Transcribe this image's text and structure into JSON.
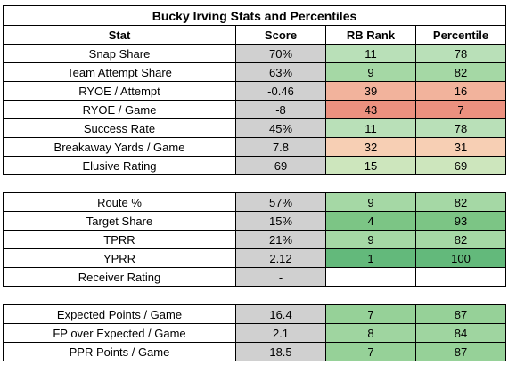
{
  "title": "Bucky Irving Stats and Percentiles",
  "headers": {
    "stat": "Stat",
    "score": "Score",
    "rank": "RB Rank",
    "percentile": "Percentile"
  },
  "sections": [
    {
      "rows": [
        {
          "stat": "Snap Share",
          "score": "70%",
          "rank": "11",
          "percentile": "78",
          "rank_color": "#b9e0b8",
          "pct_color": "#b9e0b8"
        },
        {
          "stat": "Team Attempt Share",
          "score": "63%",
          "rank": "9",
          "percentile": "82",
          "rank_color": "#a5d8a5",
          "pct_color": "#a5d8a5"
        },
        {
          "stat": "RYOE / Attempt",
          "score": "-0.46",
          "rank": "39",
          "percentile": "16",
          "rank_color": "#f2b39c",
          "pct_color": "#f2b39c"
        },
        {
          "stat": "RYOE / Game",
          "score": "-8",
          "rank": "43",
          "percentile": "7",
          "rank_color": "#ec917f",
          "pct_color": "#ec917f"
        },
        {
          "stat": "Success Rate",
          "score": "45%",
          "rank": "11",
          "percentile": "78",
          "rank_color": "#b9e0b8",
          "pct_color": "#b9e0b8"
        },
        {
          "stat": "Breakaway Yards / Game",
          "score": "7.8",
          "rank": "32",
          "percentile": "31",
          "rank_color": "#f7cfb4",
          "pct_color": "#f7cfb4"
        },
        {
          "stat": "Elusive Rating",
          "score": "69",
          "rank": "15",
          "percentile": "69",
          "rank_color": "#cde6bd",
          "pct_color": "#cde6bd"
        }
      ]
    },
    {
      "rows": [
        {
          "stat": "Route %",
          "score": "57%",
          "rank": "9",
          "percentile": "82",
          "rank_color": "#a5d8a5",
          "pct_color": "#a5d8a5"
        },
        {
          "stat": "Target Share",
          "score": "15%",
          "rank": "4",
          "percentile": "93",
          "rank_color": "#7cc585",
          "pct_color": "#7cc585"
        },
        {
          "stat": "TPRR",
          "score": "21%",
          "rank": "9",
          "percentile": "82",
          "rank_color": "#a5d8a5",
          "pct_color": "#a5d8a5"
        },
        {
          "stat": "YPRR",
          "score": "2.12",
          "rank": "1",
          "percentile": "100",
          "rank_color": "#63b97b",
          "pct_color": "#63b97b"
        },
        {
          "stat": "Receiver Rating",
          "score": "-",
          "rank": "",
          "percentile": "",
          "rank_color": "#ffffff",
          "pct_color": "#ffffff"
        }
      ]
    },
    {
      "rows": [
        {
          "stat": "Expected Points / Game",
          "score": "16.4",
          "rank": "7",
          "percentile": "87",
          "rank_color": "#96d198",
          "pct_color": "#96d198"
        },
        {
          "stat": "FP over Expected / Game",
          "score": "2.1",
          "rank": "8",
          "percentile": "84",
          "rank_color": "#9fd5a0",
          "pct_color": "#9fd5a0"
        },
        {
          "stat": "PPR Points / Game",
          "score": "18.5",
          "rank": "7",
          "percentile": "87",
          "rank_color": "#96d198",
          "pct_color": "#96d198"
        }
      ]
    }
  ]
}
